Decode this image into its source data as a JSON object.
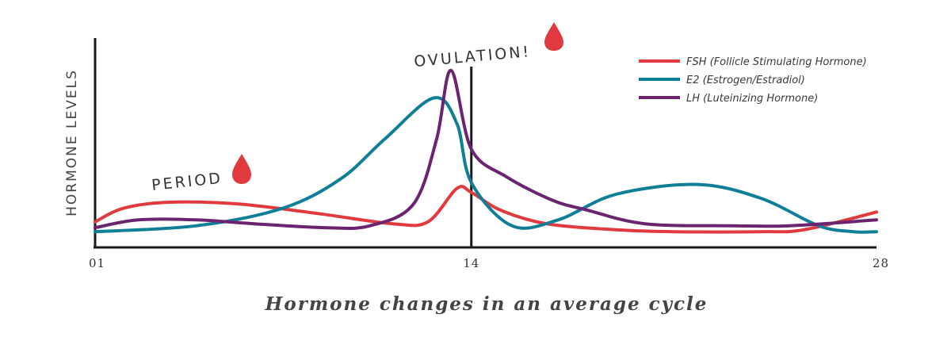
{
  "chart_data": {
    "type": "line",
    "title": "",
    "xlabel": "Hormone changes in an average cycle",
    "ylabel": "HORMONE LEVELS",
    "xlim": [
      1,
      28
    ],
    "ylim": [
      0,
      1
    ],
    "grid": false,
    "legend_position": "top-right",
    "x_ticks": [
      {
        "value": 1,
        "label": "01"
      },
      {
        "value": 14,
        "label": "14"
      },
      {
        "value": 28,
        "label": "28"
      }
    ],
    "ovulation_day": 14,
    "series": [
      {
        "name": "FSH (Follicle Stimulating Hormone)",
        "color": "#e03a3e",
        "points": [
          [
            1,
            0.13
          ],
          [
            2,
            0.2
          ],
          [
            3.6,
            0.23
          ],
          [
            6,
            0.22
          ],
          [
            8.8,
            0.17
          ],
          [
            11.3,
            0.12
          ],
          [
            12.5,
            0.13
          ],
          [
            13.5,
            0.3
          ],
          [
            14,
            0.28
          ],
          [
            15,
            0.19
          ],
          [
            16.6,
            0.12
          ],
          [
            19,
            0.09
          ],
          [
            21,
            0.08
          ],
          [
            24,
            0.08
          ],
          [
            25.5,
            0.09
          ],
          [
            28,
            0.18
          ]
        ]
      },
      {
        "name": "E2 (Estrogen/Estradiol)",
        "color": "#0f7f97",
        "points": [
          [
            1,
            0.08
          ],
          [
            4.5,
            0.11
          ],
          [
            7.5,
            0.2
          ],
          [
            9.5,
            0.35
          ],
          [
            11,
            0.55
          ],
          [
            12.7,
            0.76
          ],
          [
            13.5,
            0.63
          ],
          [
            14,
            0.33
          ],
          [
            15.4,
            0.11
          ],
          [
            17,
            0.14
          ],
          [
            19,
            0.27
          ],
          [
            21.8,
            0.32
          ],
          [
            24,
            0.25
          ],
          [
            26,
            0.11
          ],
          [
            27.2,
            0.08
          ],
          [
            28,
            0.08
          ]
        ]
      },
      {
        "name": "LH (Luteinizing Hormone)",
        "color": "#6b2470",
        "points": [
          [
            1,
            0.1
          ],
          [
            2.5,
            0.14
          ],
          [
            4.5,
            0.14
          ],
          [
            6.5,
            0.12
          ],
          [
            9,
            0.1
          ],
          [
            10.5,
            0.11
          ],
          [
            12,
            0.22
          ],
          [
            12.8,
            0.55
          ],
          [
            13.3,
            0.9
          ],
          [
            14,
            0.5
          ],
          [
            15.2,
            0.36
          ],
          [
            16.8,
            0.24
          ],
          [
            18,
            0.19
          ],
          [
            20,
            0.12
          ],
          [
            23,
            0.11
          ],
          [
            25,
            0.11
          ],
          [
            28,
            0.14
          ]
        ]
      }
    ],
    "annotations": [
      {
        "text": "PERIOD",
        "x": 4.4,
        "y": 0.3,
        "icon": "blood-drop-icon"
      },
      {
        "text": "OVULATION!",
        "x": 14,
        "y": 0.95,
        "icon": "blood-drop-icon"
      }
    ]
  },
  "colors": {
    "axis": "#1a1a1a",
    "drop": "#e03a3e"
  }
}
